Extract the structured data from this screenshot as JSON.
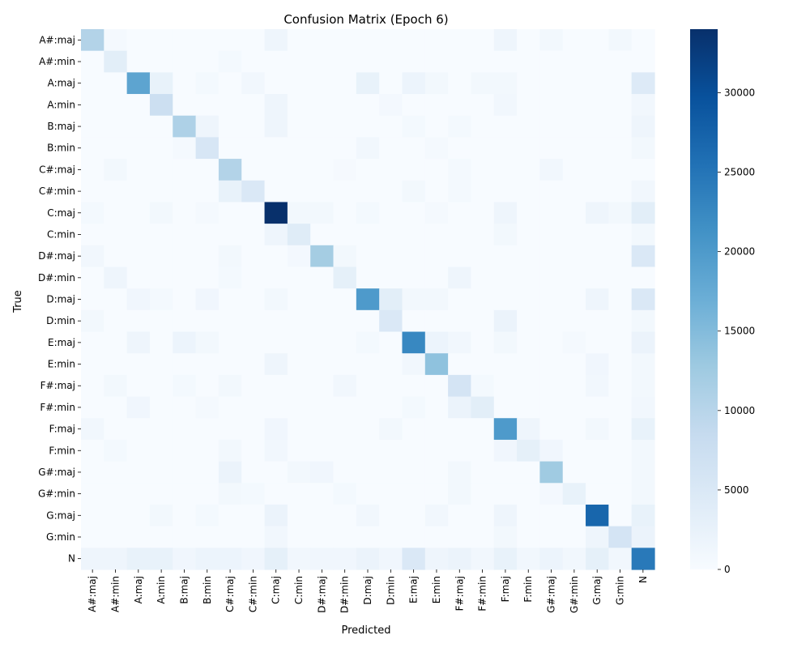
{
  "chart_data": {
    "type": "heatmap",
    "title": "Confusion Matrix (Epoch 6)",
    "xlabel": "Predicted",
    "ylabel": "True",
    "labels": [
      "A#:maj",
      "A#:min",
      "A:maj",
      "A:min",
      "B:maj",
      "B:min",
      "C#:maj",
      "C#:min",
      "C:maj",
      "C:min",
      "D#:maj",
      "D#:min",
      "D:maj",
      "D:min",
      "E:maj",
      "E:min",
      "F#:maj",
      "F#:min",
      "F:maj",
      "F:min",
      "G#:maj",
      "G#:min",
      "G:maj",
      "G:min",
      "N"
    ],
    "colorbar": {
      "min": 0,
      "max": 34000,
      "ticks": [
        0,
        5000,
        10000,
        15000,
        20000,
        25000,
        30000
      ],
      "colormap": "Blues"
    },
    "diagonal": [
      10500,
      3500,
      18500,
      7500,
      11000,
      5500,
      10500,
      5000,
      34000,
      4000,
      12000,
      3000,
      20000,
      5000,
      22500,
      14000,
      6000,
      3500,
      20000,
      3000,
      12500,
      2500,
      27000,
      6000,
      24500
    ],
    "off_diagonal": [
      {
        "r": 0,
        "c": 8,
        "v": 1500
      },
      {
        "r": 0,
        "c": 18,
        "v": 1500
      },
      {
        "r": 0,
        "c": 20,
        "v": 800
      },
      {
        "r": 0,
        "c": 23,
        "v": 800
      },
      {
        "r": 0,
        "c": 1,
        "v": 500
      },
      {
        "r": 1,
        "c": 6,
        "v": 600
      },
      {
        "r": 2,
        "c": 3,
        "v": 2500
      },
      {
        "r": 2,
        "c": 7,
        "v": 1000
      },
      {
        "r": 2,
        "c": 12,
        "v": 2500
      },
      {
        "r": 2,
        "c": 14,
        "v": 1800
      },
      {
        "r": 2,
        "c": 15,
        "v": 800
      },
      {
        "r": 2,
        "c": 17,
        "v": 800
      },
      {
        "r": 2,
        "c": 18,
        "v": 800
      },
      {
        "r": 2,
        "c": 5,
        "v": 600
      },
      {
        "r": 2,
        "c": 24,
        "v": 4500
      },
      {
        "r": 3,
        "c": 8,
        "v": 1500
      },
      {
        "r": 3,
        "c": 18,
        "v": 1000
      },
      {
        "r": 3,
        "c": 13,
        "v": 700
      },
      {
        "r": 3,
        "c": 24,
        "v": 1000
      },
      {
        "r": 4,
        "c": 5,
        "v": 1500
      },
      {
        "r": 4,
        "c": 8,
        "v": 1500
      },
      {
        "r": 4,
        "c": 14,
        "v": 600
      },
      {
        "r": 4,
        "c": 16,
        "v": 600
      },
      {
        "r": 4,
        "c": 24,
        "v": 1500
      },
      {
        "r": 5,
        "c": 12,
        "v": 1000
      },
      {
        "r": 5,
        "c": 4,
        "v": 500
      },
      {
        "r": 5,
        "c": 15,
        "v": 500
      },
      {
        "r": 5,
        "c": 24,
        "v": 800
      },
      {
        "r": 6,
        "c": 1,
        "v": 800
      },
      {
        "r": 6,
        "c": 16,
        "v": 600
      },
      {
        "r": 6,
        "c": 20,
        "v": 1000
      },
      {
        "r": 6,
        "c": 11,
        "v": 400
      },
      {
        "r": 7,
        "c": 6,
        "v": 2500
      },
      {
        "r": 7,
        "c": 14,
        "v": 800
      },
      {
        "r": 7,
        "c": 16,
        "v": 600
      },
      {
        "r": 7,
        "c": 24,
        "v": 1000
      },
      {
        "r": 8,
        "c": 3,
        "v": 800
      },
      {
        "r": 8,
        "c": 9,
        "v": 800
      },
      {
        "r": 8,
        "c": 10,
        "v": 800
      },
      {
        "r": 8,
        "c": 12,
        "v": 600
      },
      {
        "r": 8,
        "c": 15,
        "v": 500
      },
      {
        "r": 8,
        "c": 18,
        "v": 1500
      },
      {
        "r": 8,
        "c": 22,
        "v": 1500
      },
      {
        "r": 8,
        "c": 23,
        "v": 800
      },
      {
        "r": 8,
        "c": 24,
        "v": 3500
      },
      {
        "r": 8,
        "c": 0,
        "v": 600
      },
      {
        "r": 8,
        "c": 5,
        "v": 500
      },
      {
        "r": 9,
        "c": 8,
        "v": 1500
      },
      {
        "r": 9,
        "c": 18,
        "v": 800
      },
      {
        "r": 9,
        "c": 24,
        "v": 800
      },
      {
        "r": 10,
        "c": 0,
        "v": 1000
      },
      {
        "r": 10,
        "c": 6,
        "v": 800
      },
      {
        "r": 10,
        "c": 9,
        "v": 700
      },
      {
        "r": 10,
        "c": 11,
        "v": 800
      },
      {
        "r": 10,
        "c": 24,
        "v": 5000
      },
      {
        "r": 11,
        "c": 1,
        "v": 1500
      },
      {
        "r": 11,
        "c": 6,
        "v": 600
      },
      {
        "r": 11,
        "c": 16,
        "v": 1500
      },
      {
        "r": 12,
        "c": 2,
        "v": 1200
      },
      {
        "r": 12,
        "c": 3,
        "v": 600
      },
      {
        "r": 12,
        "c": 5,
        "v": 1200
      },
      {
        "r": 12,
        "c": 8,
        "v": 800
      },
      {
        "r": 12,
        "c": 13,
        "v": 3500
      },
      {
        "r": 12,
        "c": 14,
        "v": 800
      },
      {
        "r": 12,
        "c": 15,
        "v": 800
      },
      {
        "r": 12,
        "c": 22,
        "v": 1500
      },
      {
        "r": 12,
        "c": 24,
        "v": 5000
      },
      {
        "r": 13,
        "c": 0,
        "v": 800
      },
      {
        "r": 13,
        "c": 18,
        "v": 2000
      },
      {
        "r": 13,
        "c": 24,
        "v": 800
      },
      {
        "r": 14,
        "c": 2,
        "v": 1500
      },
      {
        "r": 14,
        "c": 4,
        "v": 1800
      },
      {
        "r": 14,
        "c": 5,
        "v": 800
      },
      {
        "r": 14,
        "c": 12,
        "v": 600
      },
      {
        "r": 14,
        "c": 15,
        "v": 1800
      },
      {
        "r": 14,
        "c": 16,
        "v": 1000
      },
      {
        "r": 14,
        "c": 18,
        "v": 800
      },
      {
        "r": 14,
        "c": 21,
        "v": 500
      },
      {
        "r": 14,
        "c": 24,
        "v": 2000
      },
      {
        "r": 15,
        "c": 8,
        "v": 1500
      },
      {
        "r": 15,
        "c": 14,
        "v": 1000
      },
      {
        "r": 15,
        "c": 22,
        "v": 1200
      },
      {
        "r": 15,
        "c": 24,
        "v": 800
      },
      {
        "r": 16,
        "c": 1,
        "v": 800
      },
      {
        "r": 16,
        "c": 4,
        "v": 600
      },
      {
        "r": 16,
        "c": 6,
        "v": 800
      },
      {
        "r": 16,
        "c": 11,
        "v": 1000
      },
      {
        "r": 16,
        "c": 17,
        "v": 600
      },
      {
        "r": 16,
        "c": 22,
        "v": 1000
      },
      {
        "r": 16,
        "c": 24,
        "v": 800
      },
      {
        "r": 17,
        "c": 2,
        "v": 1200
      },
      {
        "r": 17,
        "c": 5,
        "v": 500
      },
      {
        "r": 17,
        "c": 14,
        "v": 600
      },
      {
        "r": 17,
        "c": 16,
        "v": 2000
      },
      {
        "r": 17,
        "c": 24,
        "v": 1000
      },
      {
        "r": 18,
        "c": 0,
        "v": 1000
      },
      {
        "r": 18,
        "c": 8,
        "v": 1200
      },
      {
        "r": 18,
        "c": 13,
        "v": 800
      },
      {
        "r": 18,
        "c": 19,
        "v": 1500
      },
      {
        "r": 18,
        "c": 22,
        "v": 800
      },
      {
        "r": 18,
        "c": 24,
        "v": 2500
      },
      {
        "r": 19,
        "c": 1,
        "v": 600
      },
      {
        "r": 19,
        "c": 6,
        "v": 800
      },
      {
        "r": 19,
        "c": 8,
        "v": 1000
      },
      {
        "r": 19,
        "c": 18,
        "v": 1200
      },
      {
        "r": 19,
        "c": 20,
        "v": 1200
      },
      {
        "r": 19,
        "c": 24,
        "v": 800
      },
      {
        "r": 20,
        "c": 6,
        "v": 2000
      },
      {
        "r": 20,
        "c": 9,
        "v": 800
      },
      {
        "r": 20,
        "c": 10,
        "v": 1200
      },
      {
        "r": 20,
        "c": 16,
        "v": 800
      },
      {
        "r": 20,
        "c": 24,
        "v": 800
      },
      {
        "r": 21,
        "c": 6,
        "v": 800
      },
      {
        "r": 21,
        "c": 7,
        "v": 600
      },
      {
        "r": 21,
        "c": 11,
        "v": 600
      },
      {
        "r": 21,
        "c": 16,
        "v": 800
      },
      {
        "r": 21,
        "c": 20,
        "v": 700
      },
      {
        "r": 21,
        "c": 24,
        "v": 800
      },
      {
        "r": 22,
        "c": 3,
        "v": 800
      },
      {
        "r": 22,
        "c": 5,
        "v": 600
      },
      {
        "r": 22,
        "c": 8,
        "v": 2000
      },
      {
        "r": 22,
        "c": 12,
        "v": 1000
      },
      {
        "r": 22,
        "c": 15,
        "v": 1000
      },
      {
        "r": 22,
        "c": 18,
        "v": 1500
      },
      {
        "r": 22,
        "c": 24,
        "v": 2500
      },
      {
        "r": 23,
        "c": 8,
        "v": 1000
      },
      {
        "r": 23,
        "c": 18,
        "v": 800
      },
      {
        "r": 23,
        "c": 22,
        "v": 1500
      },
      {
        "r": 23,
        "c": 24,
        "v": 2000
      },
      {
        "r": 24,
        "c": 0,
        "v": 1500
      },
      {
        "r": 24,
        "c": 1,
        "v": 1500
      },
      {
        "r": 24,
        "c": 2,
        "v": 2500
      },
      {
        "r": 24,
        "c": 3,
        "v": 2500
      },
      {
        "r": 24,
        "c": 4,
        "v": 1200
      },
      {
        "r": 24,
        "c": 5,
        "v": 1800
      },
      {
        "r": 24,
        "c": 6,
        "v": 1800
      },
      {
        "r": 24,
        "c": 7,
        "v": 1200
      },
      {
        "r": 24,
        "c": 8,
        "v": 3000
      },
      {
        "r": 24,
        "c": 9,
        "v": 1000
      },
      {
        "r": 24,
        "c": 10,
        "v": 1200
      },
      {
        "r": 24,
        "c": 11,
        "v": 1200
      },
      {
        "r": 24,
        "c": 12,
        "v": 2000
      },
      {
        "r": 24,
        "c": 13,
        "v": 1200
      },
      {
        "r": 24,
        "c": 14,
        "v": 5000
      },
      {
        "r": 24,
        "c": 15,
        "v": 1500
      },
      {
        "r": 24,
        "c": 16,
        "v": 2000
      },
      {
        "r": 24,
        "c": 17,
        "v": 1000
      },
      {
        "r": 24,
        "c": 18,
        "v": 2500
      },
      {
        "r": 24,
        "c": 19,
        "v": 1000
      },
      {
        "r": 24,
        "c": 20,
        "v": 1800
      },
      {
        "r": 24,
        "c": 21,
        "v": 1000
      },
      {
        "r": 24,
        "c": 22,
        "v": 3000
      },
      {
        "r": 24,
        "c": 23,
        "v": 1000
      }
    ]
  }
}
